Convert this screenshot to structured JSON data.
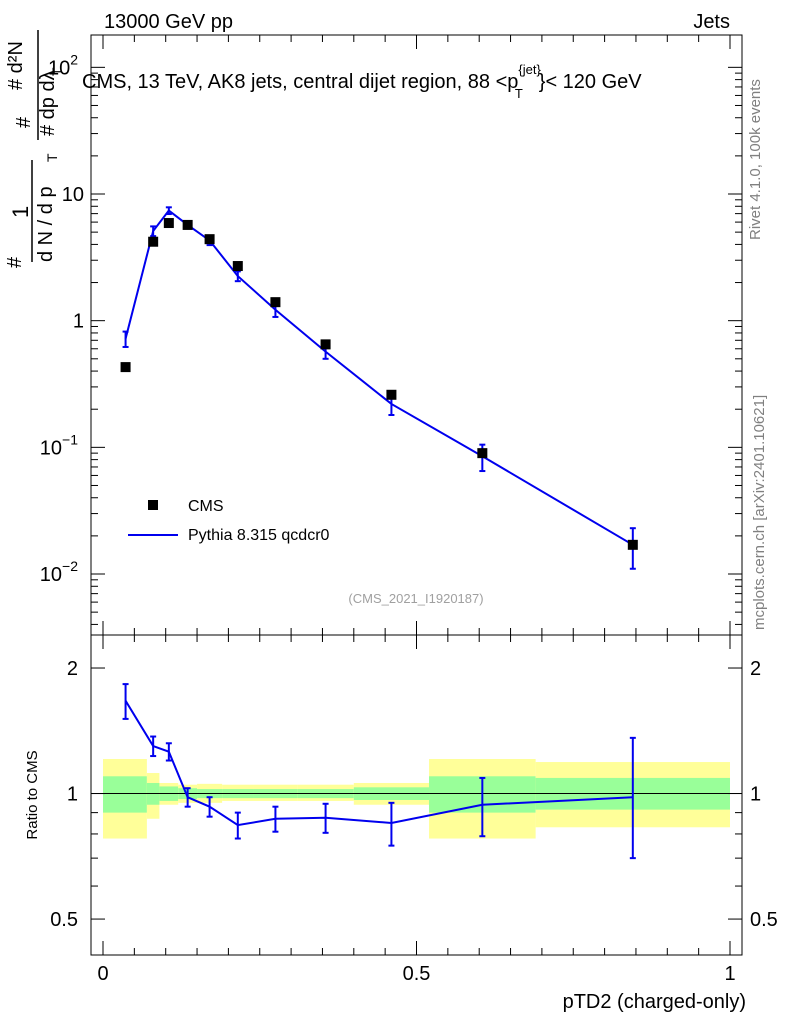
{
  "header": {
    "left": "13000 GeV pp",
    "right": "Jets"
  },
  "side_labels": {
    "rivet": "Rivet 4.1.0,  100k events",
    "mcplots": "mcplots.cern.ch [arXiv:2401.10621]"
  },
  "main_plot": {
    "title_prefix": "CMS, 13 TeV, AK8 jets, central dijet region, 88 <p",
    "title_sup": "{jet}",
    "title_sub": "T",
    "title_suffix": "}< 120 GeV",
    "ylabel_num": "#     d²N",
    "ylabel_den": "# dp  dλ",
    "ylabel_pre_num": "1",
    "ylabel_pre_den": "d N / d p",
    "ylabel_sub_T": "T",
    "ylabel_hash": "#",
    "ylabel_sub_T2": "T",
    "watermark": "(CMS_2021_I1920187)",
    "legend": {
      "data": "CMS",
      "mc": "Pythia 8.315 qcdcr0"
    },
    "yticks": [
      {
        "value": 0.01,
        "label": "10",
        "exp": "−2"
      },
      {
        "value": 0.1,
        "label": "10",
        "exp": "−1"
      },
      {
        "value": 1,
        "label": "1",
        "exp": ""
      },
      {
        "value": 10,
        "label": "10",
        "exp": ""
      },
      {
        "value": 100,
        "label": "10",
        "exp": "2"
      }
    ]
  },
  "ratio_plot": {
    "ylabel": "Ratio to CMS",
    "yticks": [
      {
        "value": 0.5,
        "label": "0.5"
      },
      {
        "value": 1,
        "label": "1"
      },
      {
        "value": 2,
        "label": "2"
      }
    ]
  },
  "x_axis": {
    "label": "pTD2 (charged-only)",
    "ticks": [
      {
        "value": 0,
        "label": "0"
      },
      {
        "value": 0.5,
        "label": "0.5"
      },
      {
        "value": 1,
        "label": "1"
      }
    ]
  },
  "colors": {
    "mc": "#0000ee",
    "data": "#000000",
    "band_inner": "#99ff99",
    "band_outer": "#ffff99"
  },
  "chart_data": {
    "type": "scatter",
    "x_range": [
      0,
      1
    ],
    "main_y_range": [
      0.0033,
      180
    ],
    "ratio_y_range": [
      0.41,
      2.4
    ],
    "bin_edges": [
      0.0,
      0.07,
      0.09,
      0.12,
      0.15,
      0.19,
      0.24,
      0.31,
      0.4,
      0.52,
      0.69,
      1.0
    ],
    "bin_centers": [
      0.036,
      0.08,
      0.105,
      0.135,
      0.17,
      0.215,
      0.275,
      0.355,
      0.46,
      0.605,
      0.845
    ],
    "series": [
      {
        "name": "CMS",
        "values": [
          0.43,
          4.2,
          5.9,
          5.7,
          4.4,
          2.7,
          1.4,
          0.65,
          0.26,
          0.09,
          0.017
        ]
      },
      {
        "name": "Pythia 8.315 qcdcr0",
        "values": [
          0.72,
          5.1,
          7.4,
          5.7,
          4.3,
          2.25,
          1.22,
          0.57,
          0.22,
          0.085,
          0.017
        ],
        "err_lo": [
          0.1,
          0.45,
          0.45,
          0.35,
          0.35,
          0.2,
          0.15,
          0.07,
          0.04,
          0.02,
          0.006
        ],
        "err_hi": [
          0.1,
          0.45,
          0.45,
          0.35,
          0.35,
          0.2,
          0.15,
          0.07,
          0.04,
          0.02,
          0.006
        ]
      }
    ],
    "ratio": {
      "values": [
        1.67,
        1.3,
        1.26,
        0.98,
        0.93,
        0.84,
        0.87,
        0.875,
        0.85,
        0.94,
        0.98
      ],
      "err_lo": [
        0.16,
        0.07,
        0.06,
        0.05,
        0.05,
        0.06,
        0.06,
        0.07,
        0.1,
        0.15,
        0.28
      ],
      "err_hi": [
        0.16,
        0.07,
        0.06,
        0.05,
        0.05,
        0.06,
        0.06,
        0.07,
        0.1,
        0.15,
        0.38
      ],
      "band_inner_lo": [
        0.9,
        0.94,
        0.96,
        0.97,
        0.975,
        0.975,
        0.975,
        0.975,
        0.965,
        0.9,
        0.915
      ],
      "band_inner_hi": [
        1.1,
        1.06,
        1.04,
        1.03,
        1.025,
        1.025,
        1.025,
        1.025,
        1.035,
        1.1,
        1.09
      ],
      "band_outer_lo": [
        0.78,
        0.87,
        0.94,
        0.95,
        0.95,
        0.96,
        0.96,
        0.96,
        0.94,
        0.78,
        0.83
      ],
      "band_outer_hi": [
        1.21,
        1.12,
        1.06,
        1.05,
        1.055,
        1.05,
        1.05,
        1.05,
        1.06,
        1.21,
        1.19
      ]
    }
  }
}
